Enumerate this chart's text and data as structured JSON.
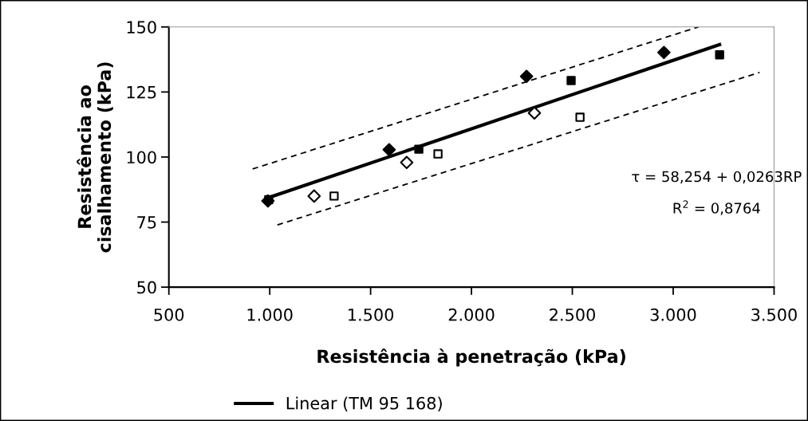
{
  "chart_data": {
    "type": "scatter",
    "xlabel": "Resistência à penetração (kPa)",
    "ylabel": "Resistência ao\ncisalhamento (kPa)",
    "xlim": [
      500,
      3500
    ],
    "xticks": [
      500,
      {
        "value": 1000,
        "label": "1.000"
      },
      {
        "value": 1500,
        "label": "1.500"
      },
      {
        "value": 2000,
        "label": "2.000"
      },
      {
        "value": 2500,
        "label": "2.500"
      },
      {
        "value": 3000,
        "label": "3.000"
      },
      {
        "value": 3500,
        "label": "3.500"
      }
    ],
    "ylim": [
      50,
      150
    ],
    "yticks": [
      50,
      75,
      100,
      125,
      150
    ],
    "grid": false,
    "legend": "bottom",
    "series": [
      {
        "marker": "diamond",
        "color": "#000000",
        "x": [
          991,
          1592,
          2273,
          2954
        ],
        "values": [
          83.1,
          102.8,
          131,
          140.2
        ]
      },
      {
        "marker": "diamond",
        "color": "#ffffff",
        "x": [
          1220,
          1679,
          2312
        ],
        "values": [
          85,
          97.9,
          116.9
        ]
      },
      {
        "marker": "square",
        "color": "#ffffff",
        "x": [
          1319,
          1834,
          2538
        ],
        "values": [
          85,
          101.2,
          115.3
        ]
      },
      {
        "marker": "square",
        "color": "#000000",
        "x": [
          995,
          1739,
          2494,
          3230
        ],
        "values": [
          83.6,
          103,
          129.4,
          139.3
        ]
      },
      {
        "type": "line",
        "name": "Linear (TM 95 168)",
        "color": "#000000",
        "line_style": "solid",
        "marker": "none",
        "x": [
          995,
          3230
        ],
        "values": [
          84.4,
          143.2
        ]
      },
      {
        "type": "line",
        "color": "#000000",
        "line_style": "dashed",
        "marker": "none",
        "x": [
          915,
          3125
        ],
        "values": [
          95.4,
          150
        ]
      },
      {
        "type": "line",
        "color": "#000000",
        "line_style": "dashed",
        "marker": "none",
        "x": [
          1038,
          3428
        ],
        "values": [
          73.9,
          132.5
        ]
      }
    ],
    "annotations": [
      "τ = 58,254 + 0,0263RP",
      "R$^{2}$ = 0,8764"
    ]
  }
}
